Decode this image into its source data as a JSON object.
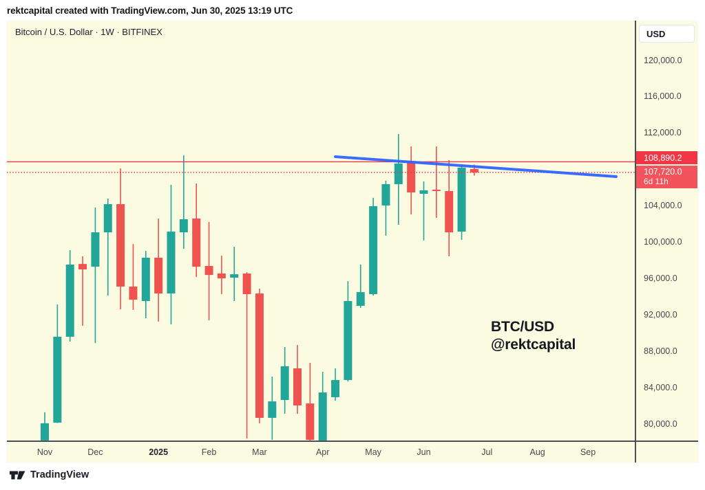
{
  "header": {
    "attribution": "rektcapital created with TradingView.com, Jun 30, 2025 13:19 UTC"
  },
  "chart": {
    "symbol_legend": "Bitcoin / U.S. Dollar · 1W · BITFINEX",
    "currency_button": "USD",
    "watermark_line1": "BTC/USD",
    "watermark_line2": "@rektcapital",
    "price_label_line": {
      "text": "108,890.2"
    },
    "price_label_current": {
      "text": "107,720.0",
      "countdown": "6d 11h"
    }
  },
  "chart_data": {
    "type": "candlestick",
    "interval": "1W",
    "symbol": "Bitcoin / U.S. Dollar",
    "exchange": "BITFINEX",
    "ohlc_note": "candles are weekly [open, high, low, close], week 0 = leftmost candle (early Nov 2024), week 34 = current week (Jun 30 2025)",
    "candles": [
      [
        78230,
        81330,
        78230,
        80120
      ],
      [
        80190,
        93190,
        80150,
        89640
      ],
      [
        89640,
        99170,
        89110,
        97580
      ],
      [
        97650,
        98490,
        90850,
        97050
      ],
      [
        97350,
        103860,
        88950,
        101130
      ],
      [
        101130,
        104840,
        94180,
        104230
      ],
      [
        104230,
        108170,
        92660,
        95160
      ],
      [
        95160,
        99850,
        92590,
        93720
      ],
      [
        93570,
        99090,
        91680,
        98340
      ],
      [
        98340,
        102650,
        91300,
        94400
      ],
      [
        94400,
        106350,
        91000,
        101210
      ],
      [
        101130,
        109600,
        99320,
        102570
      ],
      [
        102650,
        106500,
        96220,
        97350
      ],
      [
        97430,
        102270,
        91450,
        96440
      ],
      [
        96600,
        98560,
        94330,
        96070
      ],
      [
        96140,
        99550,
        93570,
        96520
      ],
      [
        96600,
        96750,
        78450,
        94330
      ],
      [
        94400,
        94930,
        80110,
        80720
      ],
      [
        80720,
        85250,
        78300,
        82530
      ],
      [
        82680,
        88500,
        81170,
        86390
      ],
      [
        86160,
        88730,
        81170,
        82080
      ],
      [
        82300,
        86770,
        78070,
        78300
      ],
      [
        78220,
        85780,
        78070,
        83510
      ],
      [
        82990,
        86160,
        82610,
        84880
      ],
      [
        84880,
        95760,
        84720,
        93570
      ],
      [
        93040,
        97580,
        92820,
        94550
      ],
      [
        94330,
        104920,
        94180,
        104010
      ],
      [
        104080,
        106810,
        100760,
        106430
      ],
      [
        106430,
        111950,
        101970,
        108700
      ],
      [
        108770,
        110590,
        103100,
        105520
      ],
      [
        105370,
        106730,
        100230,
        105750
      ],
      [
        105820,
        110590,
        102720,
        105670
      ],
      [
        105670,
        109070,
        98490,
        101130
      ],
      [
        101210,
        108390,
        100300,
        108240
      ],
      [
        108100,
        108580,
        107380,
        107720
      ]
    ],
    "x_axis": {
      "months": [
        {
          "label": "Nov",
          "week": 0,
          "bold": false
        },
        {
          "label": "Dec",
          "week": 4,
          "bold": false
        },
        {
          "label": "2025",
          "week": 9,
          "bold": true
        },
        {
          "label": "Feb",
          "week": 13,
          "bold": false
        },
        {
          "label": "Mar",
          "week": 17,
          "bold": false
        },
        {
          "label": "Apr",
          "week": 22,
          "bold": false
        },
        {
          "label": "May",
          "week": 26,
          "bold": false
        },
        {
          "label": "Jun",
          "week": 30,
          "bold": false
        },
        {
          "label": "Jul",
          "week": 35,
          "bold": false
        },
        {
          "label": "Aug",
          "week": 39,
          "bold": false
        },
        {
          "label": "Sep",
          "week": 43,
          "bold": false
        }
      ]
    },
    "y_axis": {
      "range": [
        78100,
        123500
      ],
      "ticks": [
        {
          "label": "120,000.0",
          "price": 120000
        },
        {
          "label": "116,000.0",
          "price": 116000
        },
        {
          "label": "112,000.0",
          "price": 112000
        },
        {
          "label": "104,000.0",
          "price": 104000
        },
        {
          "label": "100,000.0",
          "price": 100000
        },
        {
          "label": "96,000.0",
          "price": 96000
        },
        {
          "label": "92,000.0",
          "price": 92000
        },
        {
          "label": "88,000.0",
          "price": 88000
        },
        {
          "label": "84,000.0",
          "price": 84000
        },
        {
          "label": "80,000.0",
          "price": 80000
        }
      ]
    },
    "hline": {
      "price": 108890.2,
      "style": "solid"
    },
    "current_price": {
      "price": 107720.0,
      "countdown": "6d 11h",
      "style": "dotted"
    },
    "trendline": {
      "from": {
        "week": 23.0,
        "price": 109450
      },
      "to": {
        "week": 45.23,
        "price": 107260
      }
    },
    "grid": false,
    "legend_position": "top-left"
  },
  "colors": {
    "bull": "#23A69A",
    "bear": "#EF5350",
    "line_red": "#F23645",
    "hline_label_bg": "#F23645",
    "current_label_bg": "#F1545C",
    "trend_blue": "#2962FF",
    "chart_bg": "#FBFBE2",
    "axis_text": "#45484f"
  },
  "footer": {
    "brand": "TradingView"
  }
}
